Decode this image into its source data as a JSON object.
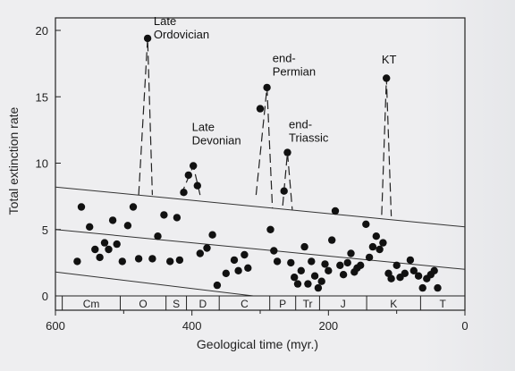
{
  "chart_data": {
    "type": "scatter",
    "xlabel": "Geological time (myr.)",
    "ylabel": "Total extinction rate",
    "xlim": [
      600,
      0
    ],
    "ylim": [
      0,
      20
    ],
    "xticks": [
      600,
      400,
      200,
      0
    ],
    "yticks": [
      0,
      5,
      10,
      15,
      20
    ],
    "points": [
      [
        568,
        2.6
      ],
      [
        562,
        6.7
      ],
      [
        550,
        5.2
      ],
      [
        542,
        3.5
      ],
      [
        535,
        2.9
      ],
      [
        528,
        4.0
      ],
      [
        522,
        3.5
      ],
      [
        516,
        5.7
      ],
      [
        510,
        3.9
      ],
      [
        502,
        2.6
      ],
      [
        494,
        5.3
      ],
      [
        486,
        6.7
      ],
      [
        478,
        2.8
      ],
      [
        465,
        19.4
      ],
      [
        458,
        2.8
      ],
      [
        450,
        4.5
      ],
      [
        441,
        6.1
      ],
      [
        432,
        2.6
      ],
      [
        422,
        5.9
      ],
      [
        418,
        2.7
      ],
      [
        412,
        7.8
      ],
      [
        405,
        9.1
      ],
      [
        398,
        9.8
      ],
      [
        392,
        8.3
      ],
      [
        388,
        3.2
      ],
      [
        378,
        3.6
      ],
      [
        370,
        4.6
      ],
      [
        363,
        0.8
      ],
      [
        350,
        1.7
      ],
      [
        338,
        2.7
      ],
      [
        332,
        1.9
      ],
      [
        323,
        3.1
      ],
      [
        318,
        2.1
      ],
      [
        300,
        14.1
      ],
      [
        290,
        15.7
      ],
      [
        285,
        5.0
      ],
      [
        280,
        3.4
      ],
      [
        275,
        2.6
      ],
      [
        265,
        7.9
      ],
      [
        260,
        10.8
      ],
      [
        255,
        2.5
      ],
      [
        250,
        1.4
      ],
      [
        245,
        0.9
      ],
      [
        240,
        1.9
      ],
      [
        235,
        3.7
      ],
      [
        230,
        0.9
      ],
      [
        225,
        2.6
      ],
      [
        220,
        1.5
      ],
      [
        215,
        0.6
      ],
      [
        210,
        1.1
      ],
      [
        205,
        2.4
      ],
      [
        200,
        1.9
      ],
      [
        195,
        4.2
      ],
      [
        190,
        6.4
      ],
      [
        183,
        2.3
      ],
      [
        178,
        1.6
      ],
      [
        172,
        2.5
      ],
      [
        167,
        3.2
      ],
      [
        162,
        1.8
      ],
      [
        158,
        2.1
      ],
      [
        153,
        2.3
      ],
      [
        145,
        5.4
      ],
      [
        140,
        2.9
      ],
      [
        135,
        3.7
      ],
      [
        130,
        4.5
      ],
      [
        125,
        3.5
      ],
      [
        120,
        4.0
      ],
      [
        115,
        16.4
      ],
      [
        112,
        1.7
      ],
      [
        108,
        1.3
      ],
      [
        100,
        2.3
      ],
      [
        95,
        1.4
      ],
      [
        88,
        1.7
      ],
      [
        80,
        2.7
      ],
      [
        75,
        1.9
      ],
      [
        68,
        1.5
      ],
      [
        62,
        0.6
      ],
      [
        56,
        1.3
      ],
      [
        50,
        1.6
      ],
      [
        45,
        1.9
      ],
      [
        40,
        0.6
      ]
    ],
    "dashed_spikes": [
      [
        [
          478,
          7.6
        ],
        [
          465,
          19.4
        ],
        [
          458,
          7.6
        ]
      ],
      [
        [
          416,
          7.6
        ],
        [
          398,
          9.8
        ],
        [
          388,
          7.6
        ]
      ],
      [
        [
          306,
          7.6
        ],
        [
          290,
          15.7
        ],
        [
          282,
          6.6
        ]
      ],
      [
        [
          267,
          6.8
        ],
        [
          260,
          10.8
        ],
        [
          253,
          6.5
        ]
      ],
      [
        [
          122,
          6.1
        ],
        [
          115,
          16.4
        ],
        [
          108,
          6.0
        ]
      ]
    ],
    "trend_lines": [
      [
        [
          600,
          8.2
        ],
        [
          0,
          5.2
        ]
      ],
      [
        [
          600,
          5.0
        ],
        [
          0,
          2.0
        ]
      ],
      [
        [
          600,
          1.8
        ],
        [
          310,
          0.0
        ]
      ]
    ],
    "annotations": [
      {
        "text": [
          "Late",
          "Ordovician"
        ],
        "x": 456,
        "y": 19.4
      },
      {
        "text": [
          "Late",
          "Devonian"
        ],
        "x": 400,
        "y": 11.4
      },
      {
        "text": [
          "end-",
          "Permian"
        ],
        "x": 282,
        "y": 16.6
      },
      {
        "text": [
          "end-",
          "Triassic"
        ],
        "x": 258,
        "y": 11.6
      },
      {
        "text": [
          "KT"
        ],
        "x": 122,
        "y": 17.5
      }
    ],
    "periods": [
      {
        "label": "Cm",
        "from": 590,
        "to": 505
      },
      {
        "label": "O",
        "from": 505,
        "to": 438
      },
      {
        "label": "S",
        "from": 438,
        "to": 408
      },
      {
        "label": "D",
        "from": 408,
        "to": 360
      },
      {
        "label": "C",
        "from": 360,
        "to": 286
      },
      {
        "label": "P",
        "from": 286,
        "to": 248
      },
      {
        "label": "Tr",
        "from": 248,
        "to": 213
      },
      {
        "label": "J",
        "from": 213,
        "to": 144
      },
      {
        "label": "K",
        "from": 144,
        "to": 65
      },
      {
        "label": "T",
        "from": 65,
        "to": 0
      }
    ]
  }
}
